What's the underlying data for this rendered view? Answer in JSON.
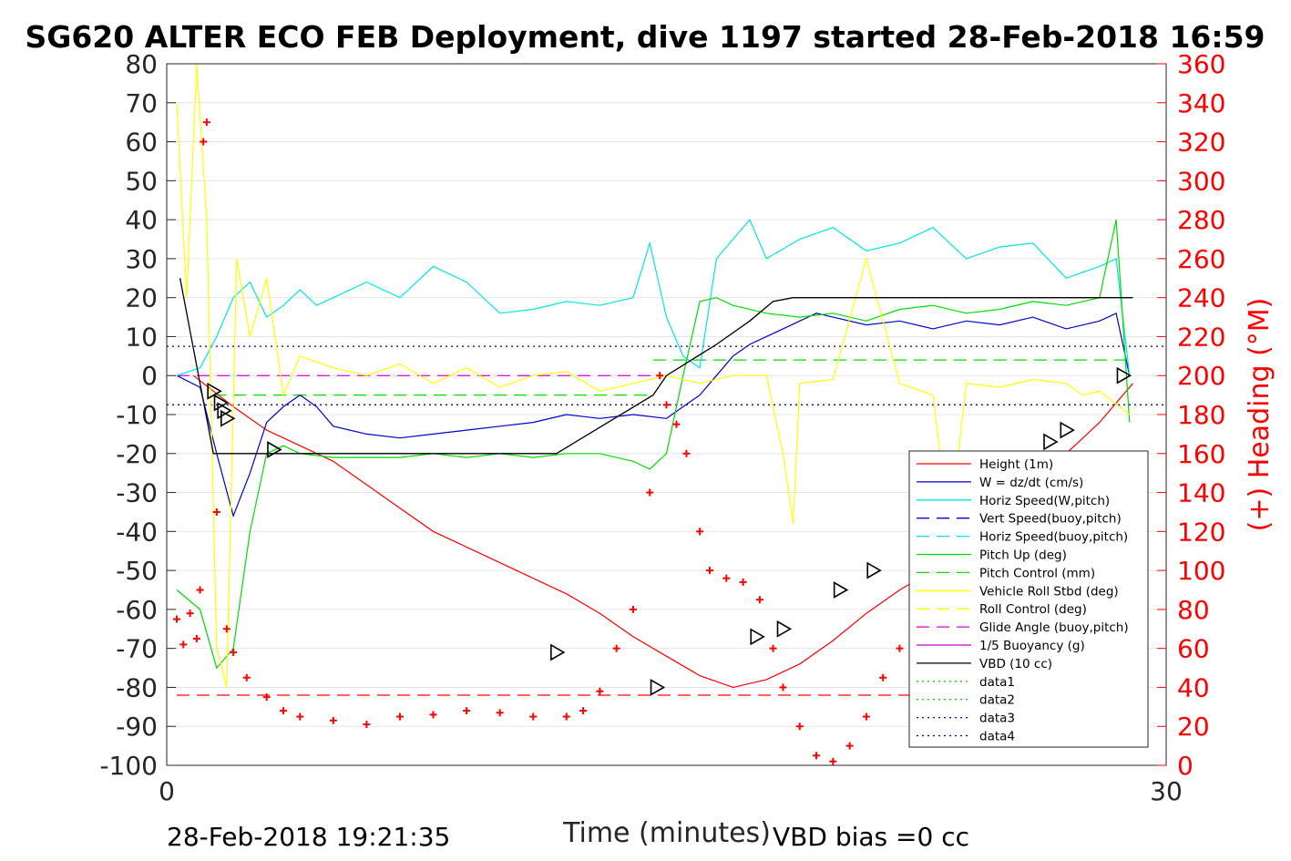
{
  "chart_data": {
    "type": "line",
    "title": "SG620 ALTER ECO FEB Deployment, dive 1197 started 28-Feb-2018 16:59",
    "xlabel": "Time (minutes)",
    "ylabel_right": "(+) Heading (°M)",
    "xlim": [
      0,
      30
    ],
    "ylim_left": [
      -100,
      80
    ],
    "ylim_right": [
      0,
      360
    ],
    "x_ticks": [
      "0",
      "30"
    ],
    "y_ticks_left": [
      "80",
      "70",
      "60",
      "50",
      "40",
      "30",
      "20",
      "10",
      "0",
      "-10",
      "-20",
      "-30",
      "-40",
      "-50",
      "-60",
      "-70",
      "-80",
      "-90",
      "-100"
    ],
    "y_ticks_right": [
      "360",
      "340",
      "320",
      "300",
      "280",
      "260",
      "240",
      "220",
      "200",
      "180",
      "160",
      "140",
      "120",
      "100",
      "80",
      "60",
      "40",
      "20",
      "0"
    ],
    "grid": "horizontal",
    "legend_position": "inside-bottom-right",
    "footer_left": "28-Feb-2018 19:21:35",
    "footer_right": "VBD bias =0 cc",
    "legend": [
      {
        "label": "Height (1m)",
        "color": "#ff0000",
        "style": "solid"
      },
      {
        "label": "W = dz/dt (cm/s)",
        "color": "#0000cc",
        "style": "solid"
      },
      {
        "label": "Horiz Speed(W,pitch)",
        "color": "#00e5e5",
        "style": "solid"
      },
      {
        "label": "Vert Speed(buoy,pitch)",
        "color": "#0000cc",
        "style": "dashed"
      },
      {
        "label": "Horiz Speed(buoy,pitch)",
        "color": "#00e5e5",
        "style": "dashed"
      },
      {
        "label": "Pitch Up (deg)",
        "color": "#00dd00",
        "style": "solid"
      },
      {
        "label": "Pitch Control (mm)",
        "color": "#00dd00",
        "style": "dashed"
      },
      {
        "label": "Vehicle Roll Stbd (deg)",
        "color": "#ffff00",
        "style": "solid"
      },
      {
        "label": "Roll Control (deg)",
        "color": "#ffff00",
        "style": "dashed"
      },
      {
        "label": "Glide Angle (buoy,pitch)",
        "color": "#dd00dd",
        "style": "dashed"
      },
      {
        "label": "1/5 Buoyancy (g)",
        "color": "#cc00cc",
        "style": "solid"
      },
      {
        "label": "VBD (10 cc)",
        "color": "#000000",
        "style": "solid"
      },
      {
        "label": "data1",
        "color": "#00dd00",
        "style": "dotted"
      },
      {
        "label": "data2",
        "color": "#00dd00",
        "style": "dotted"
      },
      {
        "label": "data3",
        "color": "#0000aa",
        "style": "dotted"
      },
      {
        "label": "data4",
        "color": "#0000aa",
        "style": "dotted"
      }
    ],
    "series": [
      {
        "name": "Height (1m)",
        "color": "#ff0000",
        "style": "solid",
        "x": [
          0.8,
          2.0,
          3.0,
          4.0,
          5.0,
          6.0,
          7.0,
          8.0,
          9.0,
          10.0,
          11.0,
          12.0,
          13.0,
          14.0,
          15.0,
          16.0,
          17.0,
          18.0,
          19.0,
          20.0,
          21.0,
          22.0,
          23.0,
          24.0,
          25.0,
          26.0,
          27.0,
          28.0,
          29.0
        ],
        "y": [
          0,
          -8,
          -14,
          -18,
          -22,
          -28,
          -34,
          -40,
          -44,
          -48,
          -52,
          -56,
          -61,
          -67,
          -72,
          -77,
          -80,
          -78,
          -74,
          -68,
          -61,
          -55,
          -50,
          -44,
          -37,
          -29,
          -20,
          -12,
          -2
        ]
      },
      {
        "name": "W = dz/dt (cm/s)",
        "color": "#0000cc",
        "style": "solid",
        "x": [
          0.3,
          1.0,
          1.5,
          2.0,
          2.5,
          3.0,
          3.5,
          4.0,
          4.5,
          5.0,
          6.0,
          7.0,
          8.0,
          9.0,
          10.0,
          11.0,
          12.0,
          13.0,
          14.0,
          15.0,
          15.5,
          16.0,
          16.5,
          17.0,
          17.5,
          18.0,
          18.5,
          19.0,
          19.5,
          20.0,
          21.0,
          22.0,
          23.0,
          24.0,
          25.0,
          26.0,
          27.0,
          28.0,
          28.5,
          28.9
        ],
        "y": [
          0,
          -3,
          -20,
          -36,
          -25,
          -12,
          -8,
          -5,
          -8,
          -13,
          -15,
          -16,
          -15,
          -14,
          -13,
          -12,
          -10,
          -11,
          -10,
          -11,
          -8,
          -5,
          0,
          5,
          8,
          10,
          12,
          14,
          16,
          15,
          13,
          14,
          12,
          14,
          13,
          15,
          12,
          14,
          16,
          0
        ]
      },
      {
        "name": "Horiz Speed(W,pitch)",
        "color": "#00e5e5",
        "style": "solid",
        "x": [
          0.3,
          1.0,
          1.5,
          2.0,
          2.5,
          3.0,
          3.5,
          4.0,
          4.5,
          5.0,
          6.0,
          7.0,
          8.0,
          9.0,
          10.0,
          11.0,
          12.0,
          13.0,
          14.0,
          14.5,
          15.0,
          15.5,
          16.0,
          16.5,
          17.0,
          17.5,
          18.0,
          19.0,
          20.0,
          21.0,
          22.0,
          23.0,
          24.0,
          25.0,
          26.0,
          27.0,
          28.0,
          28.5,
          28.9
        ],
        "y": [
          0,
          2,
          10,
          20,
          24,
          15,
          18,
          22,
          18,
          20,
          24,
          20,
          28,
          24,
          16,
          17,
          19,
          18,
          20,
          34,
          15,
          5,
          2,
          30,
          35,
          40,
          30,
          35,
          38,
          32,
          34,
          38,
          30,
          33,
          34,
          25,
          28,
          30,
          0
        ]
      },
      {
        "name": "Pitch Up (deg)",
        "color": "#00dd00",
        "style": "solid",
        "x": [
          0.3,
          1.0,
          1.5,
          2.0,
          2.5,
          3.0,
          3.5,
          4.0,
          5.0,
          6.0,
          7.0,
          8.0,
          9.0,
          10.0,
          11.0,
          12.0,
          13.0,
          14.0,
          14.5,
          15.0,
          15.5,
          16.0,
          16.5,
          17.0,
          18.0,
          19.0,
          20.0,
          21.0,
          22.0,
          23.0,
          24.0,
          25.0,
          26.0,
          27.0,
          28.0,
          28.5,
          28.9
        ],
        "y": [
          -55,
          -60,
          -75,
          -70,
          -40,
          -20,
          -18,
          -20,
          -21,
          -21,
          -21,
          -20,
          -21,
          -20,
          -21,
          -20,
          -20,
          -22,
          -24,
          -20,
          0,
          19,
          20,
          18,
          16,
          15,
          16,
          14,
          17,
          18,
          16,
          17,
          19,
          18,
          20,
          40,
          -12
        ]
      },
      {
        "name": "Vehicle Roll Stbd (deg)",
        "color": "#ffff00",
        "style": "solid",
        "x": [
          0.3,
          0.6,
          0.9,
          1.2,
          1.5,
          1.8,
          2.1,
          2.5,
          3.0,
          3.5,
          4.0,
          5.0,
          6.0,
          7.0,
          8.0,
          9.0,
          10.0,
          11.0,
          12.0,
          13.0,
          14.0,
          15.0,
          16.0,
          17.0,
          18.0,
          18.5,
          18.8,
          19.0,
          20.0,
          21.0,
          22.0,
          23.0,
          23.5,
          24.0,
          25.0,
          26.0,
          27.0,
          27.5,
          28.0,
          28.9
        ],
        "y": [
          70,
          20,
          80,
          40,
          -70,
          -80,
          30,
          10,
          25,
          -5,
          5,
          2,
          0,
          3,
          -2,
          2,
          -3,
          0,
          1,
          -4,
          -2,
          0,
          -2,
          0,
          0,
          -20,
          -38,
          -2,
          -1,
          30,
          -2,
          -5,
          -40,
          -2,
          -3,
          -1,
          -2,
          -5,
          -4,
          -10
        ]
      },
      {
        "name": "VBD (10 cc)",
        "color": "#000000",
        "style": "solid",
        "x": [
          0.4,
          1.4,
          11.7,
          14.6,
          15.0,
          16.5,
          17.5,
          18.2,
          18.8,
          20.0,
          25.0,
          29.0
        ],
        "y": [
          25,
          -20,
          -20,
          -5,
          0,
          8,
          14,
          19,
          20,
          20,
          20,
          20
        ]
      }
    ],
    "reference_lines": [
      {
        "name": "Pitch Control (mm)",
        "y": -5,
        "x_range": [
          1.4,
          14.6
        ],
        "color": "#00dd00",
        "style": "dashed"
      },
      {
        "name": "Pitch Control (mm)",
        "y": 4,
        "x_range": [
          14.6,
          29.0
        ],
        "color": "#00dd00",
        "style": "dashed"
      },
      {
        "name": "Glide Angle (buoy,pitch)",
        "y": 0,
        "x_range": [
          0.3,
          14.6
        ],
        "color": "#dd00dd",
        "style": "dashed"
      },
      {
        "name": "data3",
        "y": 7.5,
        "x_range": [
          0,
          30
        ],
        "color": "#0000aa",
        "style": "dotted"
      },
      {
        "name": "data4",
        "y": -7.5,
        "x_range": [
          0,
          30
        ],
        "color": "#0000aa",
        "style": "dotted"
      }
    ],
    "heading_points_deg": [
      {
        "x": 0.3,
        "y": 75
      },
      {
        "x": 0.5,
        "y": 62
      },
      {
        "x": 0.7,
        "y": 78
      },
      {
        "x": 0.9,
        "y": 65
      },
      {
        "x": 1.0,
        "y": 90
      },
      {
        "x": 1.1,
        "y": 320
      },
      {
        "x": 1.2,
        "y": 330
      },
      {
        "x": 1.5,
        "y": 130
      },
      {
        "x": 1.8,
        "y": 70
      },
      {
        "x": 2.0,
        "y": 58
      },
      {
        "x": 2.4,
        "y": 45
      },
      {
        "x": 3.0,
        "y": 35
      },
      {
        "x": 3.5,
        "y": 28
      },
      {
        "x": 4.0,
        "y": 25
      },
      {
        "x": 5.0,
        "y": 23
      },
      {
        "x": 6.0,
        "y": 21
      },
      {
        "x": 7.0,
        "y": 25
      },
      {
        "x": 8.0,
        "y": 26
      },
      {
        "x": 9.0,
        "y": 28
      },
      {
        "x": 10.0,
        "y": 27
      },
      {
        "x": 11.0,
        "y": 25
      },
      {
        "x": 12.0,
        "y": 25
      },
      {
        "x": 12.5,
        "y": 28
      },
      {
        "x": 13.0,
        "y": 38
      },
      {
        "x": 13.5,
        "y": 60
      },
      {
        "x": 14.0,
        "y": 80
      },
      {
        "x": 14.5,
        "y": 140
      },
      {
        "x": 14.8,
        "y": 200
      },
      {
        "x": 15.0,
        "y": 185
      },
      {
        "x": 15.3,
        "y": 175
      },
      {
        "x": 15.6,
        "y": 160
      },
      {
        "x": 16.0,
        "y": 120
      },
      {
        "x": 16.3,
        "y": 100
      },
      {
        "x": 16.8,
        "y": 96
      },
      {
        "x": 17.3,
        "y": 94
      },
      {
        "x": 17.8,
        "y": 85
      },
      {
        "x": 18.2,
        "y": 60
      },
      {
        "x": 18.5,
        "y": 40
      },
      {
        "x": 19.0,
        "y": 20
      },
      {
        "x": 19.5,
        "y": 5
      },
      {
        "x": 20.0,
        "y": 2
      },
      {
        "x": 20.5,
        "y": 10
      },
      {
        "x": 21.0,
        "y": 25
      },
      {
        "x": 21.5,
        "y": 45
      },
      {
        "x": 22.0,
        "y": 60
      },
      {
        "x": 22.5,
        "y": 68
      },
      {
        "x": 23.0,
        "y": 63
      },
      {
        "x": 23.5,
        "y": 45
      },
      {
        "x": 24.0,
        "y": 28
      },
      {
        "x": 24.5,
        "y": 24
      },
      {
        "x": 25.0,
        "y": 27
      },
      {
        "x": 25.5,
        "y": 27
      },
      {
        "x": 26.0,
        "y": 30
      },
      {
        "x": 26.5,
        "y": 24
      }
    ],
    "heading_mean_deg": 36,
    "turn_markers": [
      {
        "x": 1.4,
        "y": -4
      },
      {
        "x": 1.6,
        "y": -7
      },
      {
        "x": 1.7,
        "y": -9
      },
      {
        "x": 1.8,
        "y": -11
      },
      {
        "x": 3.2,
        "y": -19
      },
      {
        "x": 11.7,
        "y": -71
      },
      {
        "x": 14.7,
        "y": -80
      },
      {
        "x": 17.7,
        "y": -67
      },
      {
        "x": 18.5,
        "y": -65
      },
      {
        "x": 20.2,
        "y": -55
      },
      {
        "x": 21.2,
        "y": -50
      },
      {
        "x": 23.0,
        "y": -43
      },
      {
        "x": 23.8,
        "y": -39
      },
      {
        "x": 26.5,
        "y": -17
      },
      {
        "x": 27.0,
        "y": -14
      },
      {
        "x": 28.7,
        "y": 0
      }
    ]
  }
}
